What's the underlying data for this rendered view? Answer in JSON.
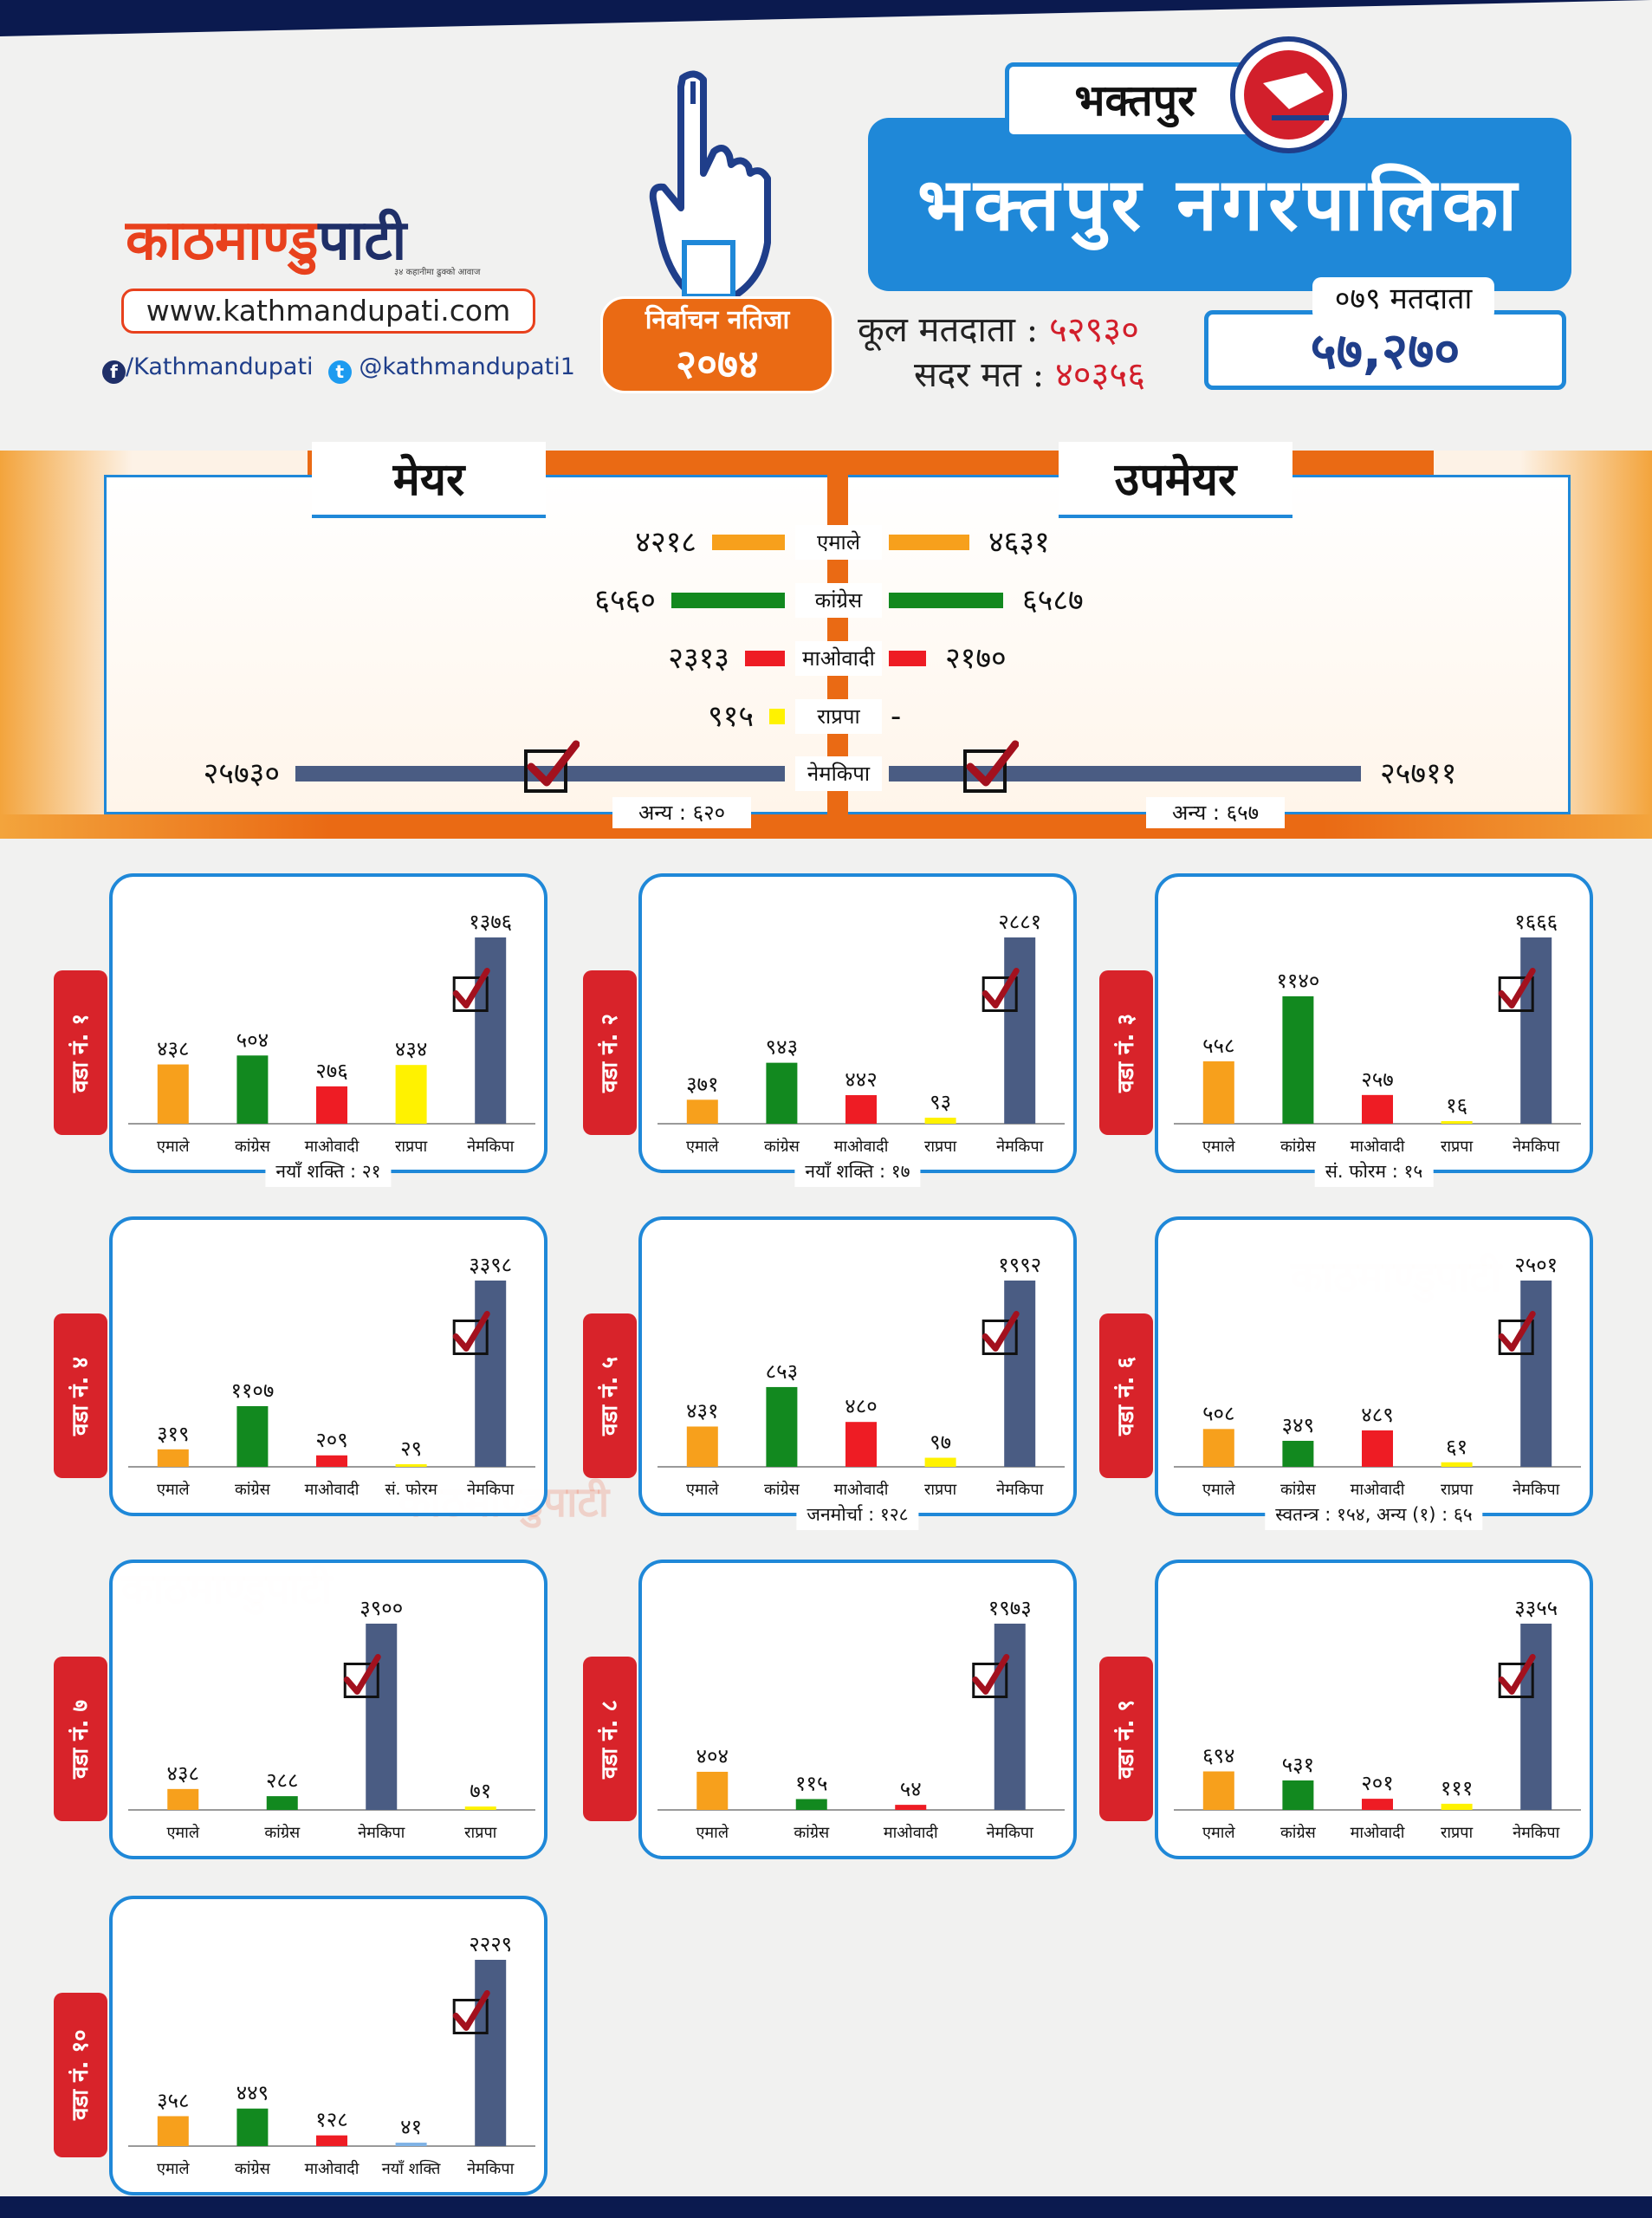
{
  "brand": {
    "name_part1": "काठमाण्डु",
    "name_part2": "पाटी",
    "tagline": "३४ कहानीमा ढुक्को आवाज",
    "url": "www.kathmandupati.com",
    "facebook": "/Kathmandupati",
    "twitter": "@kathmandupati1"
  },
  "header": {
    "result_title": "निर्वाचन नतिजा",
    "result_year": "२०७४",
    "district": "भक्तपुर",
    "municipality": "भक्तपुर नगरपालिका",
    "total_voters_label": "कूल मतदाता :",
    "total_voters": "५२९३०",
    "valid_votes_label": "सदर मत :",
    "valid_votes": "४०३५६",
    "voters_079_label": "०७९ मतदाता",
    "voters_079": "५७,२७०"
  },
  "colors": {
    "एमाले": "#f7a01c",
    "कांग्रेस": "#12891f",
    "माओवादी": "#ee1c24",
    "राप्रपा": "#fff200",
    "नेमकिपा": "#4a5c83",
    "accent": "#1f88d8",
    "orange": "#ea6a14",
    "tag_red": "#d8232a"
  },
  "summary": {
    "mayor_label": "मेयर",
    "deputy_label": "उपमेयर",
    "rows": [
      {
        "party": "एमाले",
        "mayor": 4218,
        "mayor_text": "४२१८",
        "deputy": 4631,
        "deputy_text": "४६३१"
      },
      {
        "party": "कांग्रेस",
        "mayor": 6560,
        "mayor_text": "६५६०",
        "deputy": 6587,
        "deputy_text": "६५८७"
      },
      {
        "party": "माओवादी",
        "mayor": 2313,
        "mayor_text": "२३१३",
        "deputy": 2170,
        "deputy_text": "२१७०"
      },
      {
        "party": "राप्रपा",
        "mayor": 915,
        "mayor_text": "९१५",
        "deputy": null,
        "deputy_text": "-"
      },
      {
        "party": "नेमकिपा",
        "mayor": 25730,
        "mayor_text": "२५७३०",
        "deputy": 25711,
        "deputy_text": "२५७११",
        "winner": true
      }
    ],
    "mayor_other": "अन्य : ६२०",
    "deputy_other": "अन्य : ६५७"
  },
  "chart_data": [
    {
      "type": "bar",
      "ward": "वडा नं. १",
      "categories": [
        "एमाले",
        "कांग्रेस",
        "माओवादी",
        "राप्रपा",
        "नेमकिपा"
      ],
      "values": [
        438,
        504,
        276,
        434,
        1376
      ],
      "labels": [
        "४३८",
        "५०४",
        "२७६",
        "४३४",
        "१३७६"
      ],
      "winner": "नेमकिपा",
      "note": "नयाँ शक्ति : २१"
    },
    {
      "type": "bar",
      "ward": "वडा नं. २",
      "categories": [
        "एमाले",
        "कांग्रेस",
        "माओवादी",
        "राप्रपा",
        "नेमकिपा"
      ],
      "values": [
        371,
        943,
        442,
        93,
        2881
      ],
      "labels": [
        "३७१",
        "९४३",
        "४४२",
        "९३",
        "२८८१"
      ],
      "winner": "नेमकिपा",
      "note": "नयाँ शक्ति : १७"
    },
    {
      "type": "bar",
      "ward": "वडा नं. ३",
      "categories": [
        "एमाले",
        "कांग्रेस",
        "माओवादी",
        "राप्रपा",
        "नेमकिपा"
      ],
      "values": [
        558,
        1140,
        257,
        16,
        1666
      ],
      "labels": [
        "५५८",
        "११४०",
        "२५७",
        "१६",
        "१६६६"
      ],
      "winner": "नेमकिपा",
      "note": "सं. फोरम : १५"
    },
    {
      "type": "bar",
      "ward": "वडा नं. ४",
      "categories": [
        "एमाले",
        "कांग्रेस",
        "माओवादी",
        "सं. फोरम",
        "नेमकिपा"
      ],
      "values": [
        319,
        1107,
        209,
        29,
        3398
      ],
      "labels": [
        "३१९",
        "११०७",
        "२०९",
        "२९",
        "३३९८"
      ],
      "winner": "नेमकिपा",
      "note": ""
    },
    {
      "type": "bar",
      "ward": "वडा नं. ५",
      "categories": [
        "एमाले",
        "कांग्रेस",
        "माओवादी",
        "राप्रपा",
        "नेमकिपा"
      ],
      "values": [
        431,
        853,
        480,
        97,
        1992
      ],
      "labels": [
        "४३१",
        "८५३",
        "४८०",
        "९७",
        "१९९२"
      ],
      "winner": "नेमकिपा",
      "note": "जनमोर्चा : १२८"
    },
    {
      "type": "bar",
      "ward": "वडा नं. ६",
      "categories": [
        "एमाले",
        "कांग्रेस",
        "माओवादी",
        "राप्रपा",
        "नेमकिपा"
      ],
      "values": [
        508,
        349,
        489,
        61,
        2501
      ],
      "labels": [
        "५०८",
        "३४९",
        "४८९",
        "६१",
        "२५०१"
      ],
      "winner": "नेमकिपा",
      "note": "स्वतन्त्र : १५४, अन्य (१) : ६५"
    },
    {
      "type": "bar",
      "ward": "वडा नं. ७",
      "categories": [
        "एमाले",
        "कांग्रेस",
        "नेमकिपा",
        "राप्रपा"
      ],
      "values": [
        438,
        288,
        3900,
        71
      ],
      "labels": [
        "४३८",
        "२८८",
        "३९००",
        "७१"
      ],
      "winner": "नेमकिपा",
      "note": ""
    },
    {
      "type": "bar",
      "ward": "वडा नं. ८",
      "categories": [
        "एमाले",
        "कांग्रेस",
        "माओवादी",
        "नेमकिपा"
      ],
      "values": [
        404,
        115,
        54,
        1973
      ],
      "labels": [
        "४०४",
        "११५",
        "५४",
        "१९७३"
      ],
      "winner": "नेमकिपा",
      "note": ""
    },
    {
      "type": "bar",
      "ward": "वडा नं. ९",
      "categories": [
        "एमाले",
        "कांग्रेस",
        "माओवादी",
        "राप्रपा",
        "नेमकिपा"
      ],
      "values": [
        694,
        531,
        201,
        111,
        3355
      ],
      "labels": [
        "६९४",
        "५३१",
        "२०१",
        "१११",
        "३३५५"
      ],
      "winner": "नेमकिपा",
      "note": ""
    },
    {
      "type": "bar",
      "ward": "वडा नं. १०",
      "categories": [
        "एमाले",
        "कांग्रेस",
        "माओवादी",
        "नयाँ शक्ति",
        "नेमकिपा"
      ],
      "values": [
        358,
        449,
        128,
        41,
        2229
      ],
      "labels": [
        "३५८",
        "४४९",
        "१२८",
        "४१",
        "२२२९"
      ],
      "winner": "नेमकिपा",
      "note": ""
    }
  ],
  "watermark": "काठमाण्डुपाटी"
}
